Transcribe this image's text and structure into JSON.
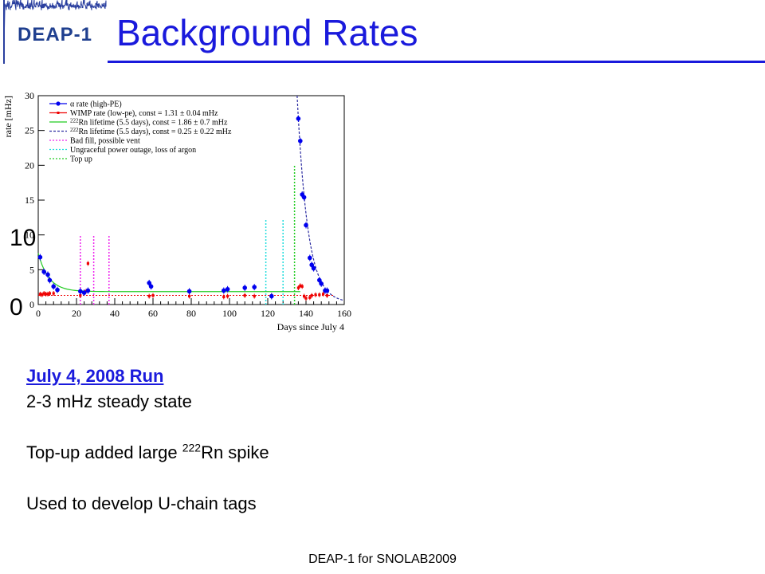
{
  "header": {
    "logo": "DEAP-1",
    "title": "Background Rates"
  },
  "overlay_labels": [
    "10",
    "0"
  ],
  "body": {
    "heading": "July 4, 2008 Run",
    "line1": "2-3 mHz steady state",
    "line2_pre": "Top-up added large ",
    "line2_sup": "222",
    "line2_post": "Rn spike",
    "line3": "Used to develop U-chain tags"
  },
  "footer": "DEAP-1 for SNOLAB2009",
  "colors": {
    "title": "#1a1adc",
    "alpha": "#0000ee",
    "wimp": "#ee0000",
    "rn_green": "#22cc22",
    "rn_blue": "#2a2aa0",
    "bad_fill": "#ee22ee",
    "power": "#22dddd",
    "topup": "#22cc22"
  },
  "chart_data": {
    "type": "scatter",
    "xlabel": "Days since July 4",
    "ylabel": "rate [mHz]",
    "xlim": [
      0,
      160
    ],
    "ylim": [
      0,
      30
    ],
    "xticks": [
      "0",
      "20",
      "40",
      "60",
      "80",
      "100",
      "120",
      "140",
      "160"
    ],
    "yticks": [
      "0",
      "5",
      "10",
      "15",
      "20",
      "25",
      "30"
    ],
    "legend_position": "top-left",
    "legend": [
      "α rate (high-PE)",
      "WIMP rate (low-pe), const = 1.31 ± 0.04 mHz",
      "222Rn lifetime (5.5 days), const = 1.86 ± 0.7 mHz",
      "222Rn lifetime (5.5 days), const = 0.25 ± 0.22 mHz",
      "Bad fill, possible vent",
      "Ungraceful power outage, loss of argon",
      "Top up"
    ],
    "series": [
      {
        "name": "α rate (high-PE)",
        "x": [
          1,
          3,
          5,
          6,
          8,
          10,
          22,
          24,
          26,
          58,
          59,
          79,
          97,
          99,
          108,
          113,
          122,
          136,
          137,
          138,
          139,
          140,
          142,
          143,
          144,
          147,
          148,
          150,
          151
        ],
        "y": [
          6.8,
          4.7,
          4.3,
          3.5,
          2.6,
          2.1,
          1.9,
          1.7,
          2.0,
          3.1,
          2.6,
          1.9,
          2.0,
          2.2,
          2.4,
          2.5,
          1.2,
          26.7,
          23.5,
          15.8,
          15.4,
          11.4,
          6.7,
          5.7,
          5.2,
          3.5,
          3.0,
          2.0,
          2.0
        ]
      },
      {
        "name": "WIMP rate (low-pe)",
        "x": [
          1,
          2,
          3,
          4,
          5,
          6,
          8,
          22,
          25,
          26,
          58,
          60,
          79,
          97,
          99,
          108,
          113,
          122,
          136,
          137,
          138,
          139,
          140,
          142,
          143,
          145,
          147,
          149,
          151
        ],
        "y": [
          1.5,
          1.4,
          1.6,
          1.5,
          1.5,
          1.6,
          1.6,
          1.3,
          1.9,
          5.9,
          1.2,
          1.3,
          1.2,
          1.1,
          1.2,
          1.3,
          1.2,
          1.3,
          2.4,
          2.7,
          2.6,
          1.2,
          0.9,
          1.0,
          1.3,
          1.4,
          1.4,
          1.5,
          1.3
        ]
      }
    ],
    "fits": [
      {
        "name": "222Rn lifetime (5.5 days), const = 1.86 ± 0.7 mHz",
        "amplitude": 5.5,
        "tau_days": 5.5,
        "start": 0,
        "const": 1.86,
        "end": 137
      },
      {
        "name": "222Rn lifetime (5.5 days), const = 0.25 ± 0.22 mHz",
        "amplitude": 26.5,
        "tau_days": 5.5,
        "start": 136,
        "const": 0.25,
        "end": 160
      },
      {
        "name": "WIMP rate const",
        "const": 1.31,
        "start": 0,
        "end": 155
      }
    ],
    "markers": [
      {
        "type": "bad_fill",
        "x": 22,
        "ymax": 10
      },
      {
        "type": "bad_fill",
        "x": 29,
        "ymax": 10
      },
      {
        "type": "bad_fill",
        "x": 37,
        "ymax": 10
      },
      {
        "type": "power_outage",
        "x": 119,
        "ymax": 12.2
      },
      {
        "type": "power_outage",
        "x": 128,
        "ymax": 12.2
      },
      {
        "type": "top_up",
        "x": 134,
        "ymax": 20
      }
    ]
  }
}
